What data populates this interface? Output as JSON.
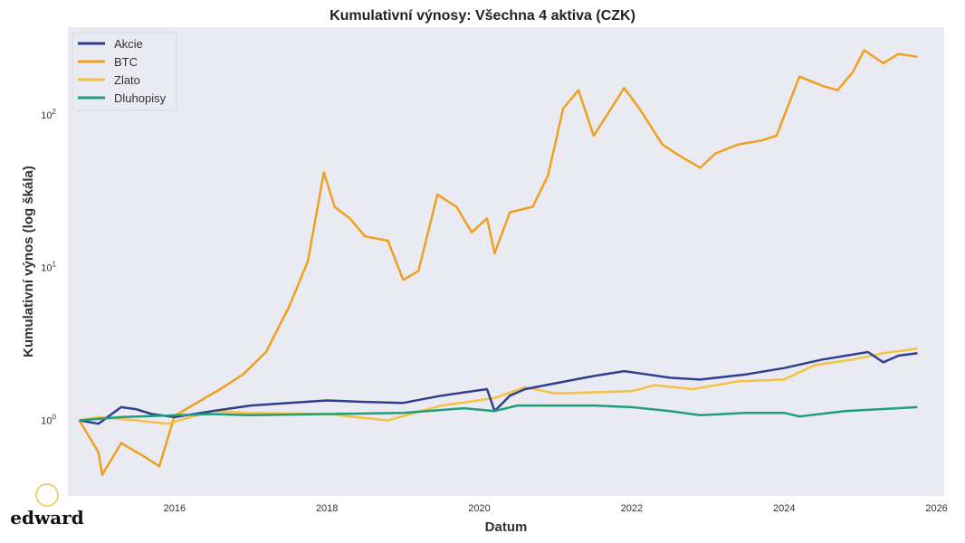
{
  "chart_data": {
    "type": "line",
    "title": "Kumulativní výnosy: Všechna 4 aktiva (CZK)",
    "xlabel": "Datum",
    "ylabel": "Kumulativní výnos (log škála)",
    "yscale": "log",
    "xlim": [
      2014.6,
      2026.1
    ],
    "ylim": [
      0.32,
      375
    ],
    "grid": false,
    "background": "#eaeaf2",
    "legend_position": "top-left",
    "x_ticks": [
      2016,
      2018,
      2020,
      2022,
      2024,
      2026
    ],
    "x_tick_labels": [
      "2016",
      "2018",
      "2020",
      "2022",
      "2024",
      "2026"
    ],
    "y_ticks": [
      1,
      10,
      100
    ],
    "y_tick_labels": [
      {
        "base": "10",
        "exp": "0"
      },
      {
        "base": "10",
        "exp": "1"
      },
      {
        "base": "10",
        "exp": "2"
      }
    ],
    "series": [
      {
        "name": "Akcie",
        "color": "#2e3f8f",
        "points": [
          [
            2014.75,
            1.0
          ],
          [
            2015.0,
            0.95
          ],
          [
            2015.3,
            1.22
          ],
          [
            2015.5,
            1.18
          ],
          [
            2015.7,
            1.1
          ],
          [
            2016.0,
            1.05
          ],
          [
            2016.5,
            1.15
          ],
          [
            2017.0,
            1.25
          ],
          [
            2017.5,
            1.3
          ],
          [
            2018.0,
            1.35
          ],
          [
            2018.5,
            1.32
          ],
          [
            2019.0,
            1.3
          ],
          [
            2019.5,
            1.45
          ],
          [
            2020.1,
            1.6
          ],
          [
            2020.2,
            1.15
          ],
          [
            2020.4,
            1.45
          ],
          [
            2020.6,
            1.6
          ],
          [
            2021.0,
            1.75
          ],
          [
            2021.5,
            1.95
          ],
          [
            2021.9,
            2.1
          ],
          [
            2022.2,
            2.0
          ],
          [
            2022.5,
            1.9
          ],
          [
            2022.9,
            1.85
          ],
          [
            2023.5,
            2.0
          ],
          [
            2024.0,
            2.2
          ],
          [
            2024.5,
            2.5
          ],
          [
            2025.1,
            2.8
          ],
          [
            2025.3,
            2.4
          ],
          [
            2025.5,
            2.65
          ],
          [
            2025.75,
            2.75
          ]
        ]
      },
      {
        "name": "BTC",
        "color": "#f0a020",
        "points": [
          [
            2014.75,
            1.0
          ],
          [
            2015.0,
            0.62
          ],
          [
            2015.05,
            0.44
          ],
          [
            2015.3,
            0.71
          ],
          [
            2015.6,
            0.58
          ],
          [
            2015.8,
            0.5
          ],
          [
            2016.0,
            1.07
          ],
          [
            2016.4,
            1.4
          ],
          [
            2016.6,
            1.6
          ],
          [
            2016.9,
            2.0
          ],
          [
            2017.2,
            2.8
          ],
          [
            2017.5,
            5.5
          ],
          [
            2017.75,
            11
          ],
          [
            2017.96,
            42
          ],
          [
            2018.1,
            25
          ],
          [
            2018.3,
            21
          ],
          [
            2018.5,
            16
          ],
          [
            2018.8,
            15
          ],
          [
            2019.0,
            8.3
          ],
          [
            2019.2,
            9.5
          ],
          [
            2019.45,
            30
          ],
          [
            2019.7,
            25
          ],
          [
            2019.9,
            17
          ],
          [
            2020.1,
            21
          ],
          [
            2020.2,
            12.4
          ],
          [
            2020.4,
            23
          ],
          [
            2020.7,
            25
          ],
          [
            2020.9,
            40
          ],
          [
            2021.1,
            110
          ],
          [
            2021.3,
            145
          ],
          [
            2021.5,
            73
          ],
          [
            2021.8,
            125
          ],
          [
            2021.9,
            150
          ],
          [
            2022.1,
            110
          ],
          [
            2022.4,
            64
          ],
          [
            2022.6,
            55
          ],
          [
            2022.9,
            45
          ],
          [
            2023.1,
            56
          ],
          [
            2023.4,
            64
          ],
          [
            2023.7,
            68
          ],
          [
            2023.9,
            73
          ],
          [
            2024.2,
            178
          ],
          [
            2024.5,
            155
          ],
          [
            2024.7,
            145
          ],
          [
            2024.9,
            190
          ],
          [
            2025.05,
            265
          ],
          [
            2025.3,
            218
          ],
          [
            2025.5,
            250
          ],
          [
            2025.75,
            240
          ]
        ]
      },
      {
        "name": "Zlato",
        "color": "#f6c244",
        "points": [
          [
            2014.75,
            1.0
          ],
          [
            2015.0,
            1.05
          ],
          [
            2015.5,
            1.0
          ],
          [
            2015.9,
            0.95
          ],
          [
            2016.5,
            1.15
          ],
          [
            2017.0,
            1.12
          ],
          [
            2018.0,
            1.1
          ],
          [
            2018.8,
            1.0
          ],
          [
            2019.5,
            1.25
          ],
          [
            2020.2,
            1.4
          ],
          [
            2020.6,
            1.65
          ],
          [
            2021.0,
            1.5
          ],
          [
            2022.0,
            1.55
          ],
          [
            2022.3,
            1.7
          ],
          [
            2022.8,
            1.6
          ],
          [
            2023.4,
            1.8
          ],
          [
            2024.0,
            1.85
          ],
          [
            2024.4,
            2.3
          ],
          [
            2024.9,
            2.5
          ],
          [
            2025.3,
            2.75
          ],
          [
            2025.75,
            2.95
          ]
        ]
      },
      {
        "name": "Dluhopisy",
        "color": "#1f9e7a",
        "points": [
          [
            2014.75,
            1.0
          ],
          [
            2015.3,
            1.05
          ],
          [
            2016.5,
            1.1
          ],
          [
            2017.0,
            1.08
          ],
          [
            2018.0,
            1.1
          ],
          [
            2019.0,
            1.12
          ],
          [
            2019.8,
            1.2
          ],
          [
            2020.2,
            1.15
          ],
          [
            2020.5,
            1.25
          ],
          [
            2021.5,
            1.25
          ],
          [
            2022.0,
            1.22
          ],
          [
            2022.5,
            1.15
          ],
          [
            2022.9,
            1.08
          ],
          [
            2023.5,
            1.12
          ],
          [
            2024.0,
            1.12
          ],
          [
            2024.2,
            1.06
          ],
          [
            2024.8,
            1.15
          ],
          [
            2025.75,
            1.22
          ]
        ]
      }
    ]
  },
  "logo": {
    "text": "edward",
    "color": "#e8c64a"
  }
}
